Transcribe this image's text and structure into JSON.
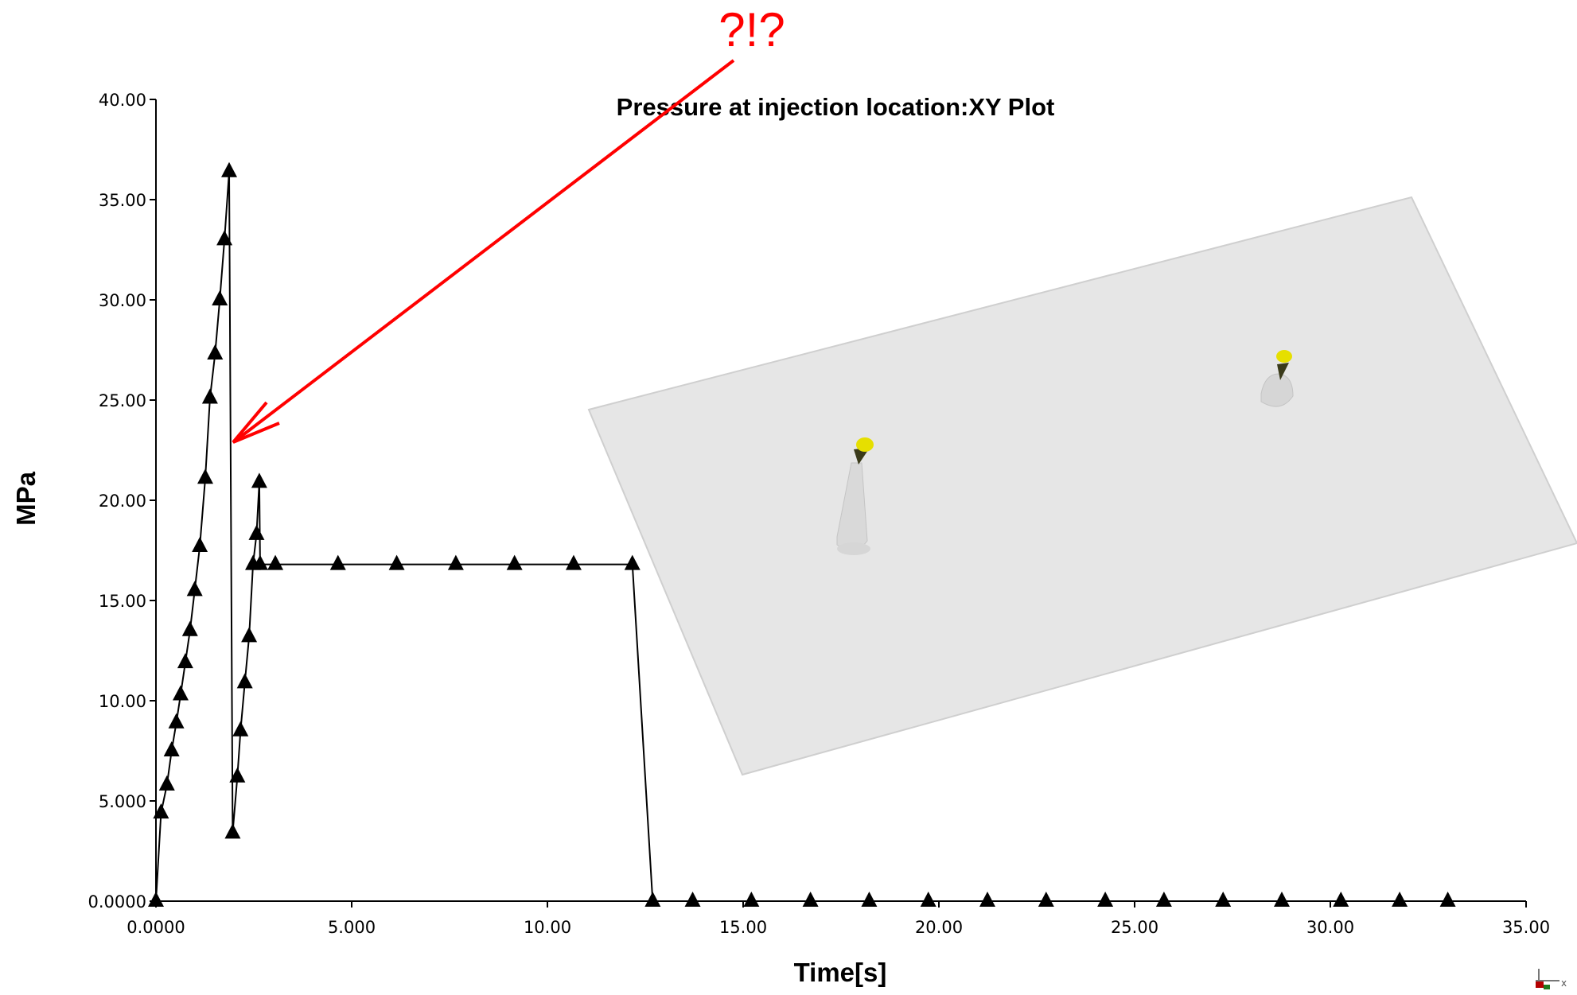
{
  "chart_data": {
    "type": "line",
    "title": "Pressure at injection location:XY Plot",
    "xlabel": "Time[s]",
    "ylabel": "MPa",
    "xlim": [
      0,
      35
    ],
    "ylim": [
      0,
      40
    ],
    "x_ticks": [
      0,
      5,
      10,
      15,
      20,
      25,
      30,
      35
    ],
    "x_tick_labels": [
      "0.0000",
      "5.000",
      "10.00",
      "15.00",
      "20.00",
      "25.00",
      "30.00",
      "35.00"
    ],
    "y_ticks": [
      0,
      5,
      10,
      15,
      20,
      25,
      30,
      35,
      40
    ],
    "y_tick_labels": [
      "0.0000",
      "5.000",
      "10.00",
      "15.00",
      "20.00",
      "25.00",
      "30.00",
      "35.00",
      "40.00"
    ],
    "grid": false,
    "marker": "triangle",
    "line_color": "#000000",
    "series": [
      {
        "x": [
          0.0,
          0.13,
          0.28,
          0.4,
          0.52,
          0.63,
          0.75,
          0.87,
          0.99,
          1.12,
          1.26,
          1.38,
          1.51,
          1.63,
          1.75,
          1.87,
          1.96,
          2.08,
          2.16,
          2.27,
          2.38,
          2.48,
          2.57,
          2.64,
          2.66,
          3.05,
          4.65,
          6.15,
          7.66,
          9.16,
          10.67,
          12.17,
          12.69,
          13.71,
          15.21,
          16.72,
          18.22,
          19.73,
          21.24,
          22.74,
          24.25,
          25.75,
          27.26,
          28.76,
          30.27,
          31.77,
          33.0
        ],
        "y": [
          0.0,
          4.4,
          5.8,
          7.5,
          8.9,
          10.3,
          11.9,
          13.5,
          15.5,
          17.7,
          21.1,
          25.1,
          27.3,
          30.0,
          33.0,
          36.4,
          3.4,
          6.2,
          8.5,
          10.9,
          13.2,
          16.8,
          18.3,
          20.9,
          16.8,
          16.8,
          16.8,
          16.8,
          16.8,
          16.8,
          16.8,
          16.8,
          0.0,
          0.0,
          0.0,
          0.0,
          0.0,
          0.0,
          0.0,
          0.0,
          0.0,
          0.0,
          0.0,
          0.0,
          0.0,
          0.0,
          0.0
        ]
      }
    ],
    "annotation": {
      "text": "?!?",
      "color": "#ff0000",
      "points_to": {
        "x": 2.0,
        "y": 22.8
      }
    }
  }
}
